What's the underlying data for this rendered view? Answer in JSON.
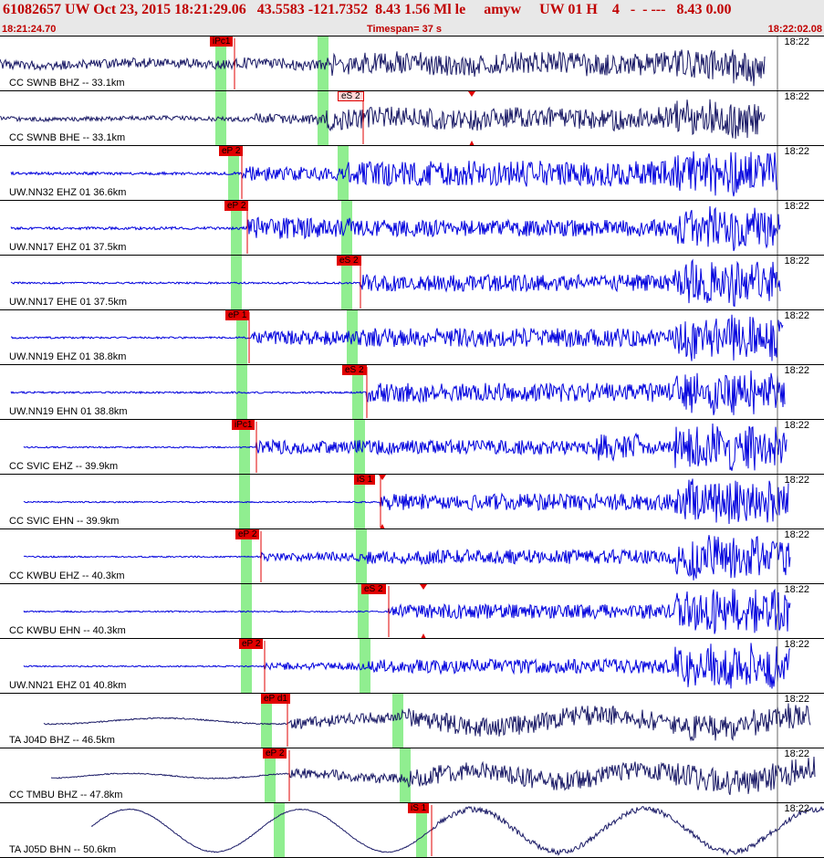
{
  "header": {
    "title": "61082657 UW Oct 23, 2015 18:21:29.06   43.5583 -121.7352  8.43 1.56 Ml le     amyw     UW 01 H    4   -  - ---   8.43 0.00",
    "start_time": "18:21:24.70",
    "timespan": "Timespan=  37 s",
    "end_time": "18:22:02.08"
  },
  "colors": {
    "header_text": "#c00000",
    "trace_navy": "#1a1a66",
    "trace_blue": "#0000dd",
    "pick_red": "#e00000",
    "window_green": "#90ee90"
  },
  "panels": [
    {
      "label": "CC SWNB BHZ -- 33.1km",
      "tick": "18:22",
      "pick": "iPc1",
      "pick_style": "solid",
      "color": "navy"
    },
    {
      "label": "CC SWNB BHE -- 33.1km",
      "tick": "18:22",
      "pick": "eS 2",
      "pick_style": "light",
      "color": "navy"
    },
    {
      "label": "UW.NN32 EHZ 01 36.6km",
      "tick": "18:22",
      "pick": "eP 2",
      "pick_style": "solid",
      "color": "blue"
    },
    {
      "label": "UW.NN17 EHZ 01 37.5km",
      "tick": "18:22",
      "pick": "eP 2",
      "pick_style": "solid",
      "color": "blue"
    },
    {
      "label": "UW.NN17 EHE 01 37.5km",
      "tick": "18:22",
      "pick": "eS 2",
      "pick_style": "solid",
      "color": "blue"
    },
    {
      "label": "UW.NN19 EHZ 01 38.8km",
      "tick": "18:22",
      "pick": "eP 1",
      "pick_style": "solid",
      "color": "blue"
    },
    {
      "label": "UW.NN19 EHN 01 38.8km",
      "tick": "18:22",
      "pick": "eS 2",
      "pick_style": "solid",
      "color": "blue"
    },
    {
      "label": "CC SVIC EHZ -- 39.9km",
      "tick": "18:22",
      "pick": "iPc1",
      "pick_style": "solid",
      "color": "blue"
    },
    {
      "label": "CC SVIC EHN -- 39.9km",
      "tick": "18:22",
      "pick": "iS 1",
      "pick_style": "solid",
      "color": "blue"
    },
    {
      "label": "CC KWBU EHZ -- 40.3km",
      "tick": "18:22",
      "pick": "eP 2",
      "pick_style": "solid",
      "color": "blue"
    },
    {
      "label": "CC KWBU EHN -- 40.3km",
      "tick": "18:22",
      "pick": "eS 2",
      "pick_style": "solid",
      "color": "blue"
    },
    {
      "label": "UW.NN21 EHZ 01 40.8km",
      "tick": "18:22",
      "pick": "eP 2",
      "pick_style": "solid",
      "color": "blue"
    },
    {
      "label": "TA J04D BHZ -- 46.5km",
      "tick": "18:22",
      "pick": "eP d1",
      "pick_style": "solid",
      "color": "navy"
    },
    {
      "label": "CC TMBU BHZ -- 47.8km",
      "tick": "18:22",
      "pick": "eP 2",
      "pick_style": "solid",
      "color": "navy"
    },
    {
      "label": "TA J05D BHN -- 50.6km",
      "tick": "18:22",
      "pick": "iS 1",
      "pick_style": "solid",
      "color": "navy"
    }
  ]
}
